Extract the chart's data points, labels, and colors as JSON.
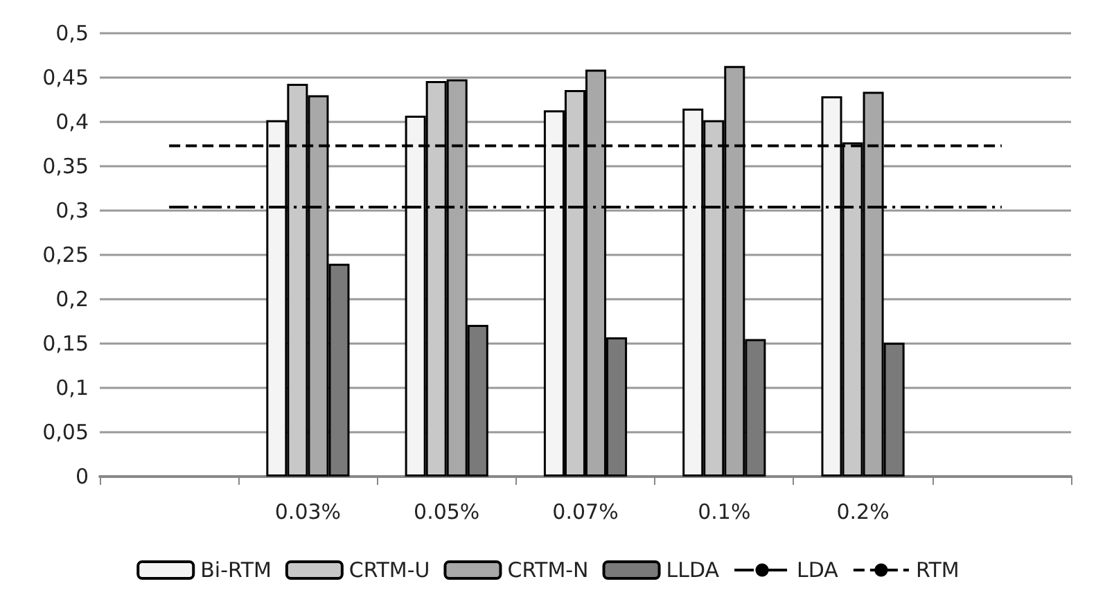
{
  "chart_data": {
    "type": "bar",
    "categories": [
      null,
      "0.03%",
      "0.05%",
      "0.07%",
      "0.1%",
      "0.2%",
      null
    ],
    "series": [
      {
        "name": "Bi-RTM",
        "color": "#f4f4f4",
        "values": [
          null,
          0.402,
          0.407,
          0.413,
          0.415,
          0.429,
          null
        ]
      },
      {
        "name": "CRTM-U",
        "color": "#c8c8c8",
        "values": [
          null,
          0.443,
          0.446,
          0.436,
          0.402,
          0.377,
          null
        ]
      },
      {
        "name": "CRTM-N",
        "color": "#a8a8a8",
        "values": [
          null,
          0.43,
          0.448,
          0.459,
          0.463,
          0.434,
          null
        ]
      },
      {
        "name": "LLDA",
        "color": "#7a7a7a",
        "values": [
          null,
          0.24,
          0.171,
          0.157,
          0.155,
          0.151,
          null
        ]
      },
      {
        "name": "LDA",
        "type": "line",
        "color": "#000000",
        "line_style": "dashdot",
        "marker": "none",
        "values": [
          0.304,
          0.304,
          0.304,
          0.304,
          0.304,
          0.304,
          0.304
        ]
      },
      {
        "name": "RTM",
        "type": "line",
        "color": "#000000",
        "line_style": "dashed",
        "marker": "none",
        "values": [
          0.373,
          0.373,
          0.373,
          0.373,
          0.373,
          0.373,
          0.373
        ]
      }
    ],
    "ylim": [
      0,
      0.5
    ],
    "yticks": [
      {
        "value": 0,
        "label": "0"
      },
      {
        "value": 0.05,
        "label": "0,05"
      },
      {
        "value": 0.1,
        "label": "0,1"
      },
      {
        "value": 0.15,
        "label": "0,15"
      },
      {
        "value": 0.2,
        "label": "0,2"
      },
      {
        "value": 0.25,
        "label": "0,25"
      },
      {
        "value": 0.3,
        "label": "0,3"
      },
      {
        "value": 0.35,
        "label": "0,35"
      },
      {
        "value": 0.4,
        "label": "0,4"
      },
      {
        "value": 0.45,
        "label": "0,45"
      },
      {
        "value": 0.5,
        "label": "0,5"
      }
    ],
    "grid": "y",
    "legend": "bottom"
  }
}
